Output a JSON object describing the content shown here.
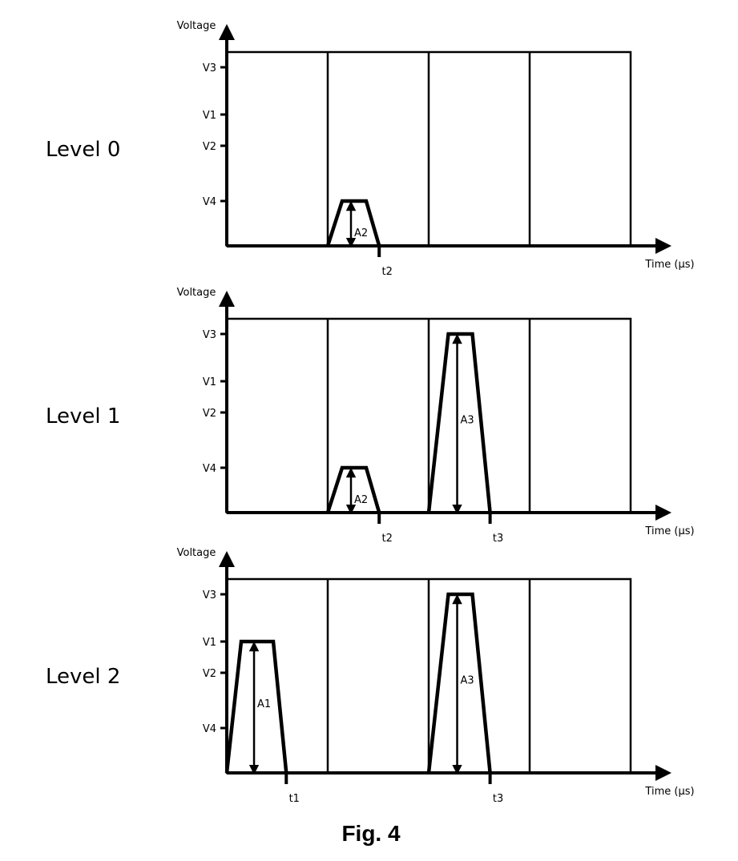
{
  "figure": {
    "caption": "Fig. 4",
    "y_axis_label": "Voltage",
    "x_axis_label": "Time (µs)",
    "voltage_levels": [
      "V3",
      "V1",
      "V2",
      "V4"
    ]
  },
  "panels": [
    {
      "id": "level0",
      "label": "Level 0",
      "pulses": [
        {
          "slot": 1,
          "level": "V4",
          "amplitude": "A2",
          "end_marker": "t2"
        }
      ]
    },
    {
      "id": "level1",
      "label": "Level 1",
      "pulses": [
        {
          "slot": 1,
          "level": "V4",
          "amplitude": "A2",
          "end_marker": "t2"
        },
        {
          "slot": 2,
          "level": "V3",
          "amplitude": "A3",
          "end_marker": "t3"
        }
      ]
    },
    {
      "id": "level2",
      "label": "Level 2",
      "pulses": [
        {
          "slot": 0,
          "level": "V1",
          "amplitude": "A1",
          "end_marker": "t1"
        },
        {
          "slot": 2,
          "level": "V3",
          "amplitude": "A3",
          "end_marker": "t3"
        }
      ]
    }
  ]
}
